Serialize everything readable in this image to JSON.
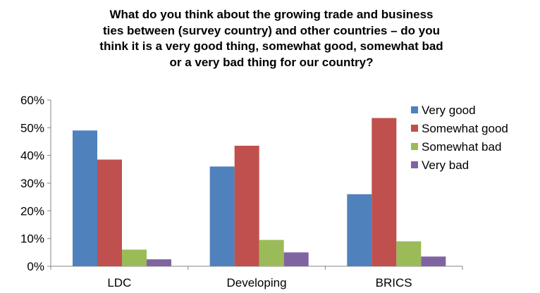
{
  "chart_data": {
    "type": "bar",
    "title_lines": [
      "What do you think about the growing trade and business",
      "ties between (survey country) and other countries – do you",
      "think it is a very good thing, somewhat good, somewhat bad",
      "or a very bad thing for our country?"
    ],
    "categories": [
      "LDC",
      "Developing",
      "BRICS"
    ],
    "series": [
      {
        "name": "Very good",
        "values": [
          49,
          36,
          26
        ],
        "color": "#4F81BD"
      },
      {
        "name": "Somewhat good",
        "values": [
          38.5,
          43.5,
          53.5
        ],
        "color": "#C0504D"
      },
      {
        "name": "Somewhat bad",
        "values": [
          6,
          9.5,
          9
        ],
        "color": "#9BBB59"
      },
      {
        "name": "Very bad",
        "values": [
          2.5,
          5,
          3.5
        ],
        "color": "#8064A2"
      }
    ],
    "y_ticks": [
      "0%",
      "10%",
      "20%",
      "30%",
      "40%",
      "50%",
      "60%"
    ],
    "ylim": [
      0,
      60
    ],
    "grid": false,
    "legend_position": "right"
  }
}
